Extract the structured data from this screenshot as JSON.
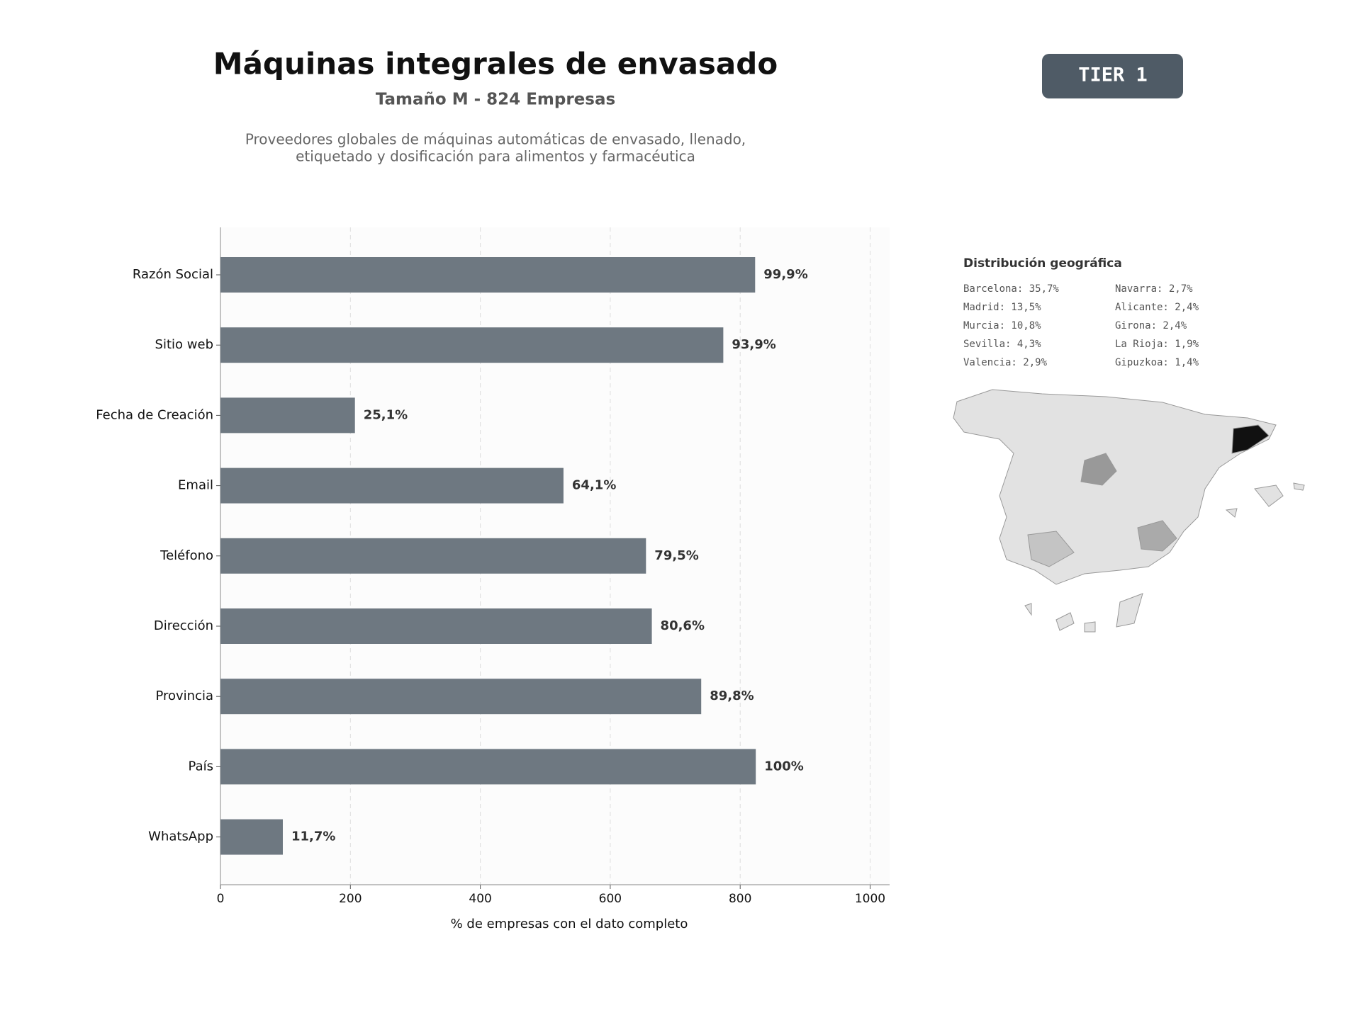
{
  "chart_data": {
    "type": "barh",
    "title": "Máquinas integrales de envasado",
    "subtitle": "Tamaño M - 824 Empresas",
    "description": [
      "Proveedores globales de máquinas automáticas de envasado, llenado,",
      "etiquetado y dosificación para alimentos y farmacéutica"
    ],
    "xlabel": "% de empresas con el dato completo",
    "categories": [
      "Razón Social",
      "Sitio web",
      "Fecha de Creación",
      "Email",
      "Teléfono",
      "Dirección",
      "Provincia",
      "País",
      "WhatsApp"
    ],
    "values": [
      823,
      774,
      207,
      528,
      655,
      664,
      740,
      824,
      96
    ],
    "value_labels": [
      "99,9%",
      "93,9%",
      "25,1%",
      "64,1%",
      "79,5%",
      "80,6%",
      "89,8%",
      "100%",
      "11,7%"
    ],
    "color": "#6e7881",
    "xlim": [
      0,
      1030
    ],
    "xticks": [
      0,
      200,
      400,
      600,
      800,
      1000
    ],
    "grid": true
  },
  "badge": "TIER 1",
  "geo": {
    "title": "Distribución geográfica",
    "items": [
      "Barcelona: 35,7%",
      "Madrid: 13,5%",
      "Murcia: 10,8%",
      "Sevilla: 4,3%",
      "Valencia: 2,9%",
      "Navarra: 2,7%",
      "Alicante: 2,4%",
      "Girona: 2,4%",
      "La Rioja: 1,9%",
      "Gipuzkoa: 1,4%"
    ]
  }
}
